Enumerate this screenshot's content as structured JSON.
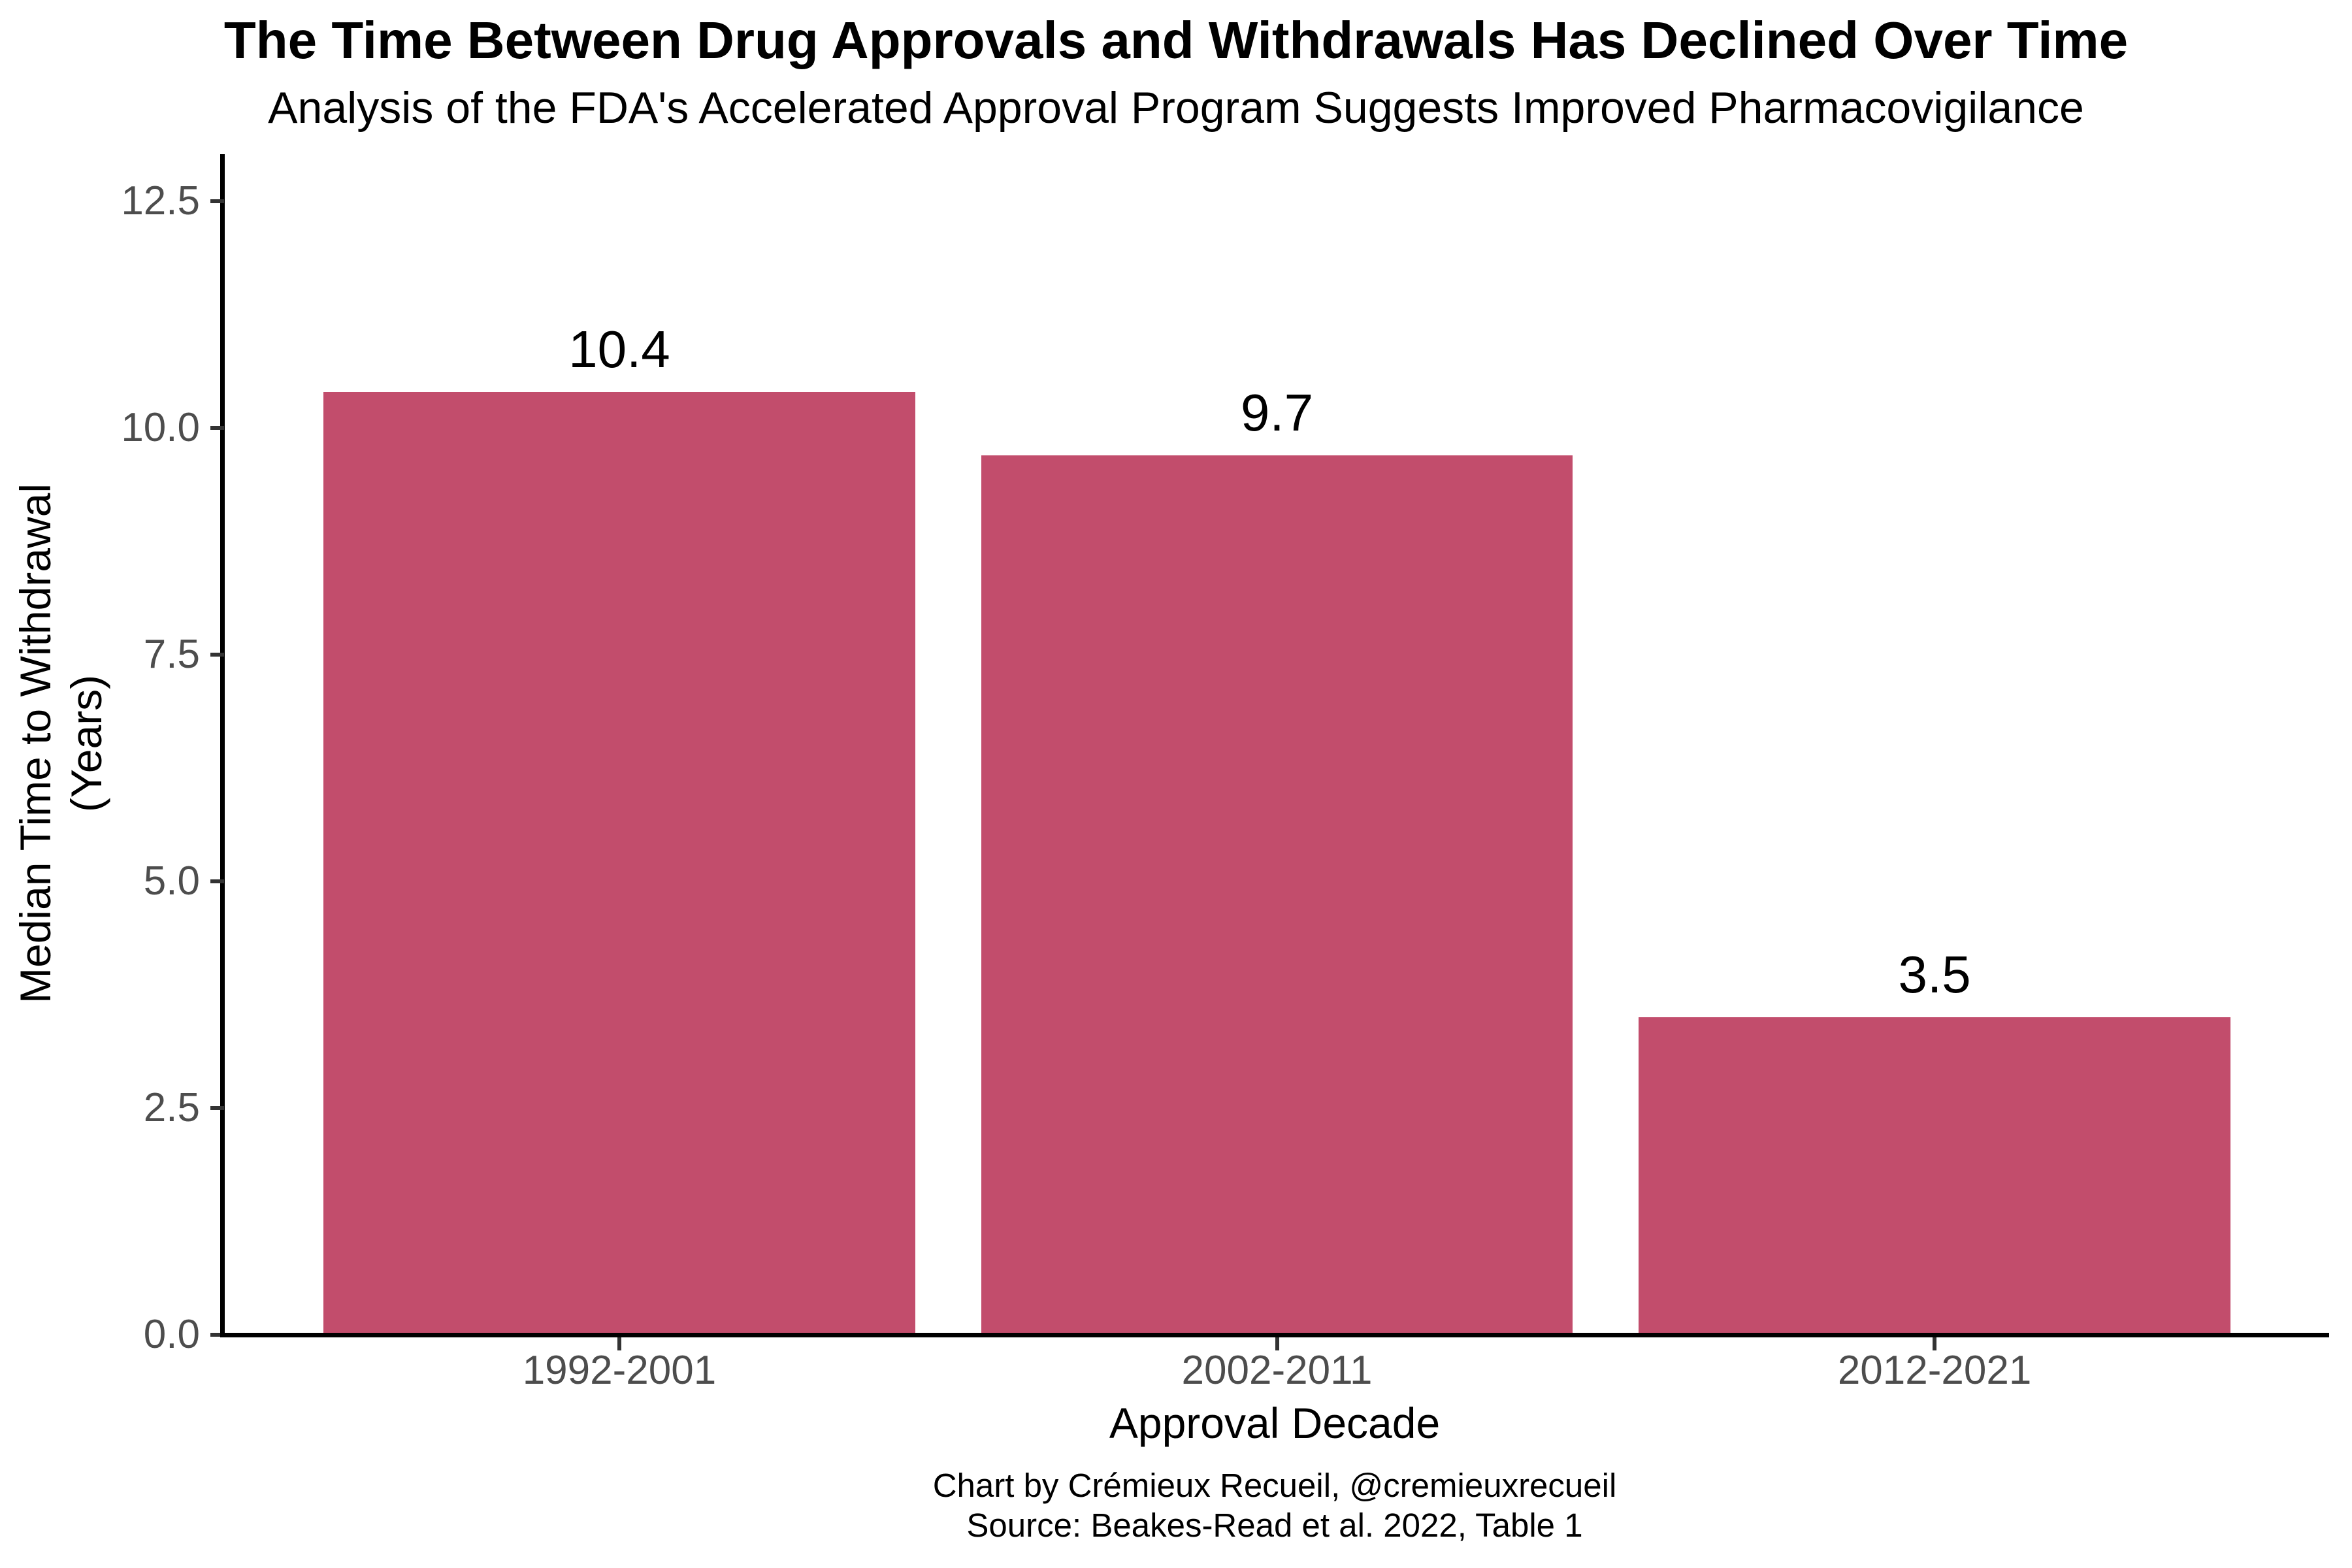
{
  "chart_data": {
    "type": "bar",
    "title": "The Time Between Drug Approvals and Withdrawals Has Declined Over Time",
    "subtitle": "Analysis of the FDA's Accelerated Approval Program Suggests Improved Pharmacovigilance",
    "categories": [
      "1992-2001",
      "2002-2011",
      "2012-2021"
    ],
    "values": [
      10.4,
      9.7,
      3.5
    ],
    "value_labels": [
      "10.4",
      "9.7",
      "3.5"
    ],
    "xlabel": "Approval Decade",
    "ylabel": "Median Time to Withdrawal (Years)",
    "ylabel_lines": [
      "Median Time to Withdrawal",
      "(Years)"
    ],
    "yticks": [
      "0.0",
      "2.5",
      "5.0",
      "7.5",
      "10.0",
      "12.5"
    ],
    "ylim": [
      0,
      13.05
    ],
    "grid": false,
    "legend": "none",
    "bar_color": "#C24D6C",
    "tick_label_color": "#4D4D4D",
    "axis_line_color": "#000000",
    "caption_line1": "Chart by Crémieux Recueil, @cremieuxrecueil",
    "caption_line2": "Source: Beakes-Read et al. 2022, Table 1"
  }
}
